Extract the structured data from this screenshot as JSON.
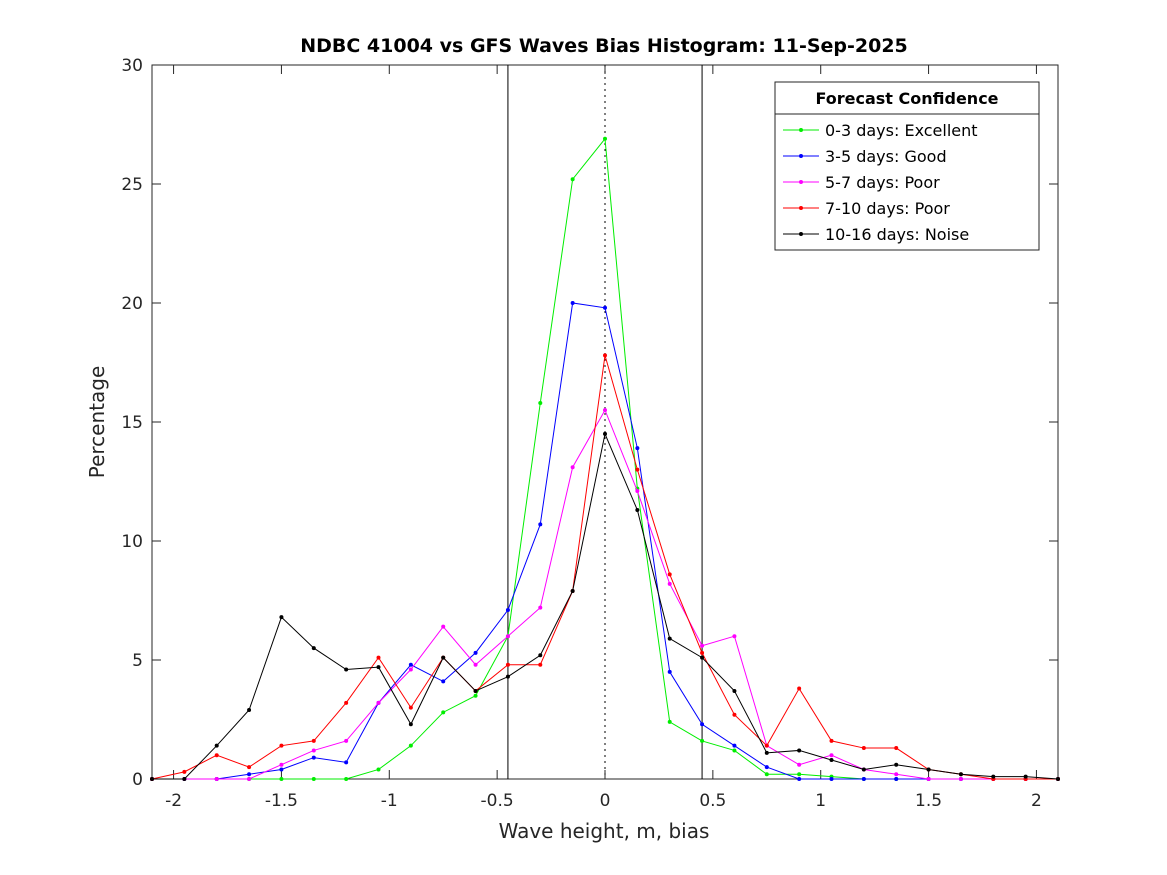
{
  "chart_data": {
    "type": "line",
    "title": "NDBC 41004 vs GFS Waves Bias Histogram: 11-Sep-2025",
    "xlabel": "Wave height, m, bias",
    "ylabel": "Percentage",
    "xlim": [
      -2.1,
      2.1
    ],
    "ylim": [
      0,
      30
    ],
    "xticks": [
      -2,
      -1.5,
      -1,
      -0.5,
      0,
      0.5,
      1,
      1.5,
      2
    ],
    "xtick_labels": [
      "-2",
      "-1.5",
      "-1",
      "-0.5",
      "0",
      "0.5",
      "1",
      "1.5",
      "2"
    ],
    "yticks": [
      0,
      5,
      10,
      15,
      20,
      25,
      30
    ],
    "ytick_labels": [
      "0",
      "5",
      "10",
      "15",
      "20",
      "25",
      "30"
    ],
    "grid": false,
    "reference_lines": [
      {
        "x": -0.45,
        "style": "solid"
      },
      {
        "x": 0,
        "style": "dotted"
      },
      {
        "x": 0.45,
        "style": "solid"
      }
    ],
    "legend": {
      "title": "Forecast Confidence",
      "position": "top-right"
    },
    "x": [
      -2.1,
      -1.95,
      -1.8,
      -1.65,
      -1.5,
      -1.35,
      -1.2,
      -1.05,
      -0.9,
      -0.75,
      -0.6,
      -0.45,
      -0.3,
      -0.15,
      0,
      0.15,
      0.3,
      0.45,
      0.6,
      0.75,
      0.9,
      1.05,
      1.2,
      1.35,
      1.5,
      1.65,
      1.8,
      1.95,
      2.1
    ],
    "series": [
      {
        "name": "0-3 days: Excellent",
        "color": "#00ee00",
        "values": [
          0,
          0,
          0,
          0,
          0,
          0,
          0,
          0.4,
          1.4,
          2.8,
          3.5,
          6.0,
          15.8,
          25.2,
          26.9,
          12.2,
          2.4,
          1.6,
          1.2,
          0.2,
          0.2,
          0.1,
          0,
          0,
          0,
          0,
          0,
          0,
          0
        ]
      },
      {
        "name": "3-5 days: Good",
        "color": "#0000ff",
        "values": [
          0,
          0,
          0,
          0.2,
          0.4,
          0.9,
          0.7,
          3.2,
          4.8,
          4.1,
          5.3,
          7.1,
          10.7,
          20.0,
          19.8,
          13.9,
          4.5,
          2.3,
          1.4,
          0.5,
          0,
          0,
          0,
          0,
          0,
          0,
          0,
          0,
          0
        ]
      },
      {
        "name": "5-7 days: Poor",
        "color": "#ff00ff",
        "values": [
          0,
          0,
          0,
          0,
          0.6,
          1.2,
          1.6,
          3.2,
          4.6,
          6.4,
          4.8,
          6.0,
          7.2,
          13.1,
          15.5,
          12.1,
          8.2,
          5.6,
          6.0,
          1.4,
          0.6,
          1.0,
          0.4,
          0.2,
          0,
          0,
          0,
          0,
          0
        ]
      },
      {
        "name": "7-10 days: Poor",
        "color": "#ff0000",
        "values": [
          0,
          0.3,
          1.0,
          0.5,
          1.4,
          1.6,
          3.2,
          5.1,
          3.0,
          5.1,
          3.7,
          4.8,
          4.8,
          7.9,
          17.8,
          13.0,
          8.6,
          5.3,
          2.7,
          1.4,
          3.8,
          1.6,
          1.3,
          1.3,
          0.4,
          0.2,
          0,
          0,
          0
        ]
      },
      {
        "name": "10-16 days: Noise",
        "color": "#000000",
        "values": [
          0,
          0,
          1.4,
          2.9,
          6.8,
          5.5,
          4.6,
          4.7,
          2.3,
          5.1,
          3.7,
          4.3,
          5.2,
          7.9,
          14.5,
          11.3,
          5.9,
          5.1,
          3.7,
          1.1,
          1.2,
          0.8,
          0.4,
          0.6,
          0.4,
          0.2,
          0.1,
          0.1,
          0
        ]
      }
    ]
  }
}
